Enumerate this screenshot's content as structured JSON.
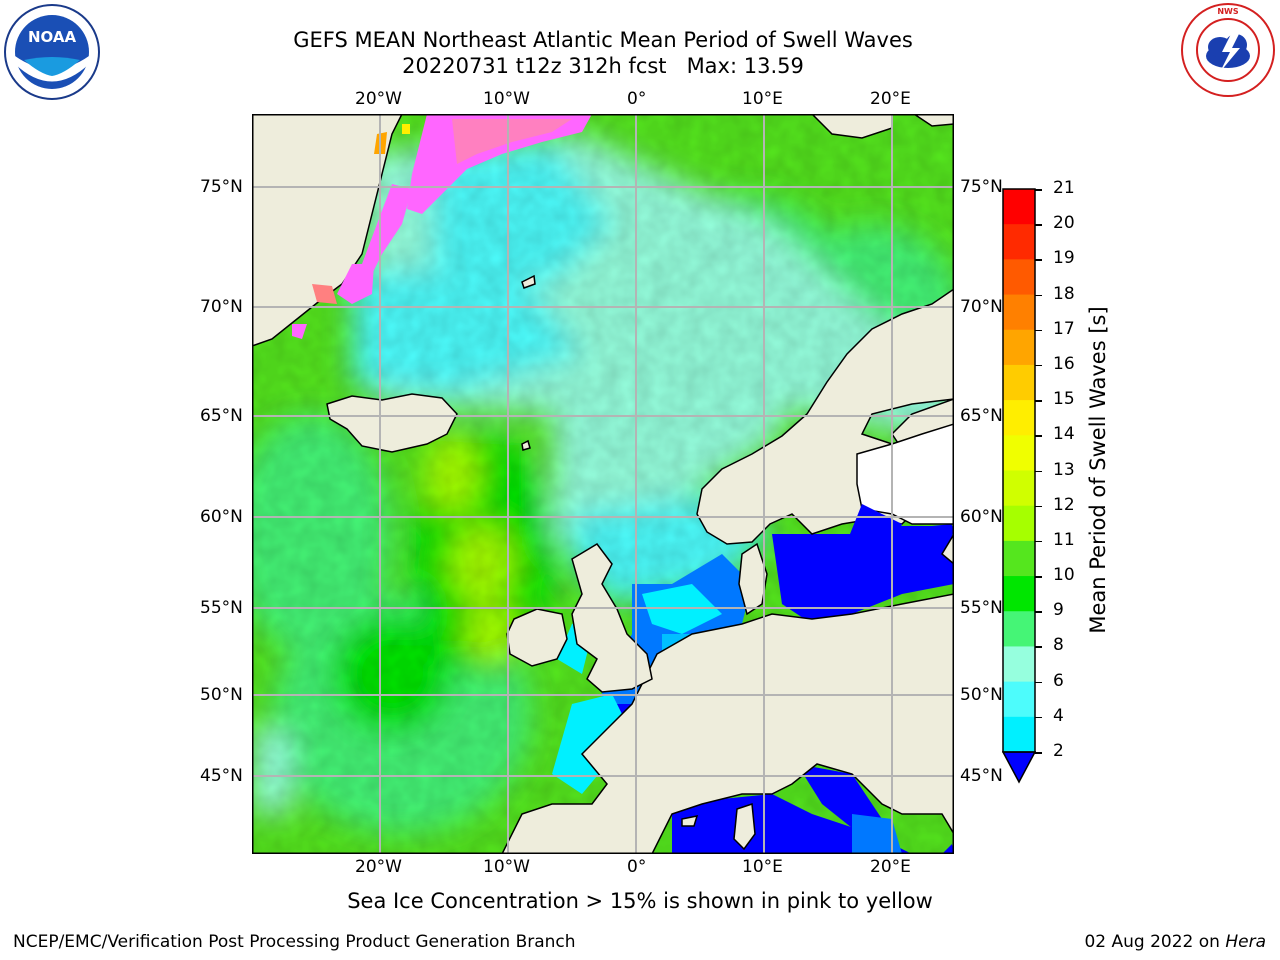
{
  "title_line1": "GEFS MEAN Northeast Atlantic Mean Period of Swell Waves",
  "title_line2": "20220731 t12z 312h fcst   Max: 13.59",
  "logos": {
    "left": "NOAA",
    "right": "NATIONAL WEATHER SERVICE"
  },
  "map": {
    "projection": "Mercator",
    "lon_range": [
      -30,
      25
    ],
    "lat_range": [
      41,
      78
    ],
    "lon_ticks": [
      "20°W",
      "10°W",
      "0°",
      "10°E",
      "20°E"
    ],
    "lat_ticks": [
      "75°N",
      "70°N",
      "65°N",
      "60°N",
      "55°N",
      "50°N",
      "45°N"
    ],
    "land_color": "#eeeddc",
    "grid_color": "#b4b4b4"
  },
  "colorbar": {
    "label": "Mean Period of Swell Waves [s]",
    "ticks": [
      "21",
      "20",
      "19",
      "18",
      "17",
      "16",
      "15",
      "14",
      "13",
      "12",
      "11",
      "10",
      "9",
      "8",
      "6",
      "4",
      "2"
    ],
    "colors": [
      "#ff0000",
      "#ff2a00",
      "#ff5a00",
      "#ff8000",
      "#ffa500",
      "#ffcc00",
      "#ffee00",
      "#f0ff00",
      "#d0ff00",
      "#a6ff00",
      "#55e61e",
      "#00e600",
      "#45f576",
      "#96ffde",
      "#4dfcfc",
      "#00f0ff",
      "#0078ff",
      "#0000ff"
    ]
  },
  "note": "Sea Ice Concentration > 15% is shown in pink to yellow",
  "footer": {
    "left": "NCEP/EMC/Verification Post Processing Product Generation Branch",
    "date": "02 Aug 2022 on ",
    "machine": "Hera"
  }
}
